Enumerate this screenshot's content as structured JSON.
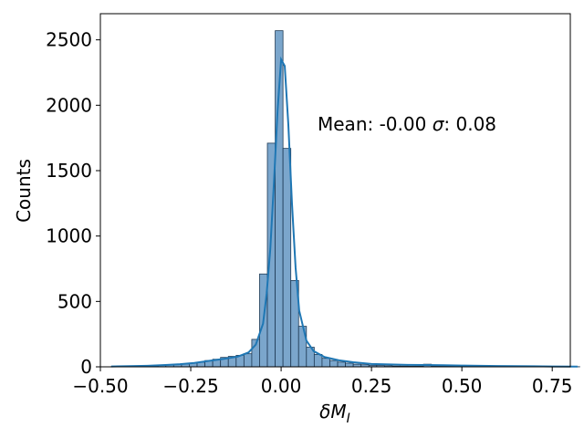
{
  "chart_data": {
    "type": "histogram",
    "xlabel_base": "δM",
    "xlabel_sub": "I",
    "ylabel": "Counts",
    "annotation": {
      "mean_label": "Mean: -0.00 ",
      "sigma_symbol": "σ",
      "sigma_label": ": 0.08"
    },
    "xlim": [
      -0.5,
      0.8
    ],
    "ylim": [
      0,
      2700
    ],
    "x_ticks": [
      {
        "value": -0.5,
        "label": "−0.50"
      },
      {
        "value": -0.25,
        "label": "−0.25"
      },
      {
        "value": 0.0,
        "label": "0.00"
      },
      {
        "value": 0.25,
        "label": "0.25"
      },
      {
        "value": 0.5,
        "label": "0.50"
      },
      {
        "value": 0.75,
        "label": "0.75"
      }
    ],
    "y_ticks": [
      {
        "value": 0,
        "label": "0"
      },
      {
        "value": 500,
        "label": "500"
      },
      {
        "value": 1000,
        "label": "1000"
      },
      {
        "value": 1500,
        "label": "1500"
      },
      {
        "value": 2000,
        "label": "2000"
      },
      {
        "value": 2500,
        "label": "2500"
      }
    ],
    "bins": {
      "start": -0.47,
      "width": 0.0216,
      "counts": [
        2,
        2,
        3,
        4,
        5,
        8,
        10,
        15,
        20,
        22,
        28,
        35,
        48,
        58,
        72,
        80,
        88,
        100,
        210,
        710,
        1710,
        2570,
        1670,
        660,
        310,
        150,
        95,
        65,
        48,
        36,
        28,
        20,
        16,
        12,
        10,
        8,
        6,
        6,
        5,
        5,
        20,
        4,
        4,
        4,
        3,
        3,
        3,
        2,
        2,
        2,
        2,
        1,
        1,
        1,
        1,
        1,
        1,
        1,
        1,
        1
      ]
    },
    "kde": {
      "x": [
        -0.47,
        -0.42,
        -0.37,
        -0.32,
        -0.28,
        -0.24,
        -0.2,
        -0.16,
        -0.12,
        -0.09,
        -0.07,
        -0.05,
        -0.04,
        -0.03,
        -0.02,
        -0.01,
        0.0,
        0.01,
        0.02,
        0.03,
        0.04,
        0.05,
        0.07,
        0.09,
        0.12,
        0.16,
        0.2,
        0.25,
        0.3,
        0.35,
        0.4,
        0.45,
        0.5,
        0.55,
        0.6,
        0.65,
        0.7,
        0.75,
        0.82
      ],
      "y": [
        3,
        5,
        8,
        14,
        20,
        30,
        45,
        60,
        78,
        110,
        170,
        330,
        560,
        900,
        1400,
        1950,
        2350,
        2300,
        1850,
        1250,
        760,
        430,
        200,
        120,
        75,
        50,
        35,
        22,
        18,
        15,
        14,
        12,
        10,
        8,
        6,
        5,
        4,
        3,
        2
      ]
    },
    "colors": {
      "bar_fill": "#7ba6cc",
      "bar_edge": "#1f3a55",
      "kde_line": "#1f77b4"
    }
  }
}
